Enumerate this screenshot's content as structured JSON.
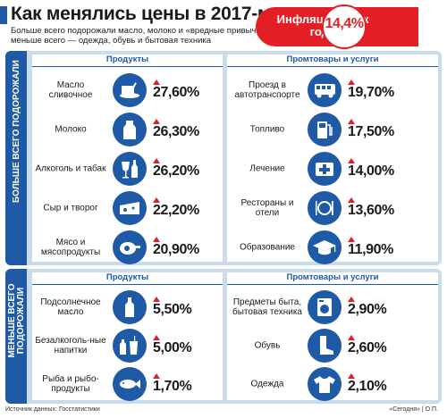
{
  "title": "Как менялись цены в 2017-м",
  "subtitle": "Больше всего подорожали масло, молоко и «вредные привычки», меньше всего — одежда, обувь и бытовая техника",
  "inflation": {
    "label": "Инфляция год к году",
    "value": "14,4%"
  },
  "more": {
    "side_label": "БОЛЬШЕ ВСЕГО ПОДОРОЖАЛИ",
    "left_head": "Продукты",
    "right_head": "Промтовары и услуги",
    "left": [
      {
        "label": "Масло сливочное",
        "value": "27,60%",
        "icon": "butter-icon"
      },
      {
        "label": "Молоко",
        "value": "26,30%",
        "icon": "milk-icon"
      },
      {
        "label": "Алкоголь и табак",
        "value": "26,20%",
        "icon": "alcohol-icon"
      },
      {
        "label": "Сыр и творог",
        "value": "22,20%",
        "icon": "cheese-icon"
      },
      {
        "label": "Мясо и мясопродукты",
        "value": "20,90%",
        "icon": "meat-icon"
      }
    ],
    "right": [
      {
        "label": "Проезд в автотранспорте",
        "value": "19,70%",
        "icon": "bus-icon"
      },
      {
        "label": "Топливо",
        "value": "17,50%",
        "icon": "fuel-icon"
      },
      {
        "label": "Лечение",
        "value": "14,00%",
        "icon": "medical-icon"
      },
      {
        "label": "Рестораны и отели",
        "value": "13,60%",
        "icon": "restaurant-icon"
      },
      {
        "label": "Образование",
        "value": "11,90%",
        "icon": "graduation-icon"
      }
    ]
  },
  "less": {
    "side_label": "МЕНЬШЕ ВСЕГО ПОДОРОЖАЛИ",
    "left_head": "Продукты",
    "right_head": "Промтовары и услуги",
    "left": [
      {
        "label": "Подсолнечное масло",
        "value": "5,50%",
        "icon": "oil-bottle-icon"
      },
      {
        "label": "Безалкоголь-ные напитки",
        "value": "5,00%",
        "icon": "soft-drink-icon"
      },
      {
        "label": "Рыба и рыбо-продукты",
        "value": "1,70%",
        "icon": "fish-icon"
      }
    ],
    "right": [
      {
        "label": "Предметы быта, бытовая техника",
        "value": "2,90%",
        "icon": "washing-machine-icon"
      },
      {
        "label": "Обувь",
        "value": "2,60%",
        "icon": "boot-icon"
      },
      {
        "label": "Одежда",
        "value": "2,10%",
        "icon": "tshirt-icon"
      }
    ]
  },
  "footer": {
    "source": "Источник данных: Госстатистики",
    "credit": "«Сегодня» | О.П."
  },
  "colors": {
    "accent_blue": "#1f5aa6",
    "accent_red": "#e31e24",
    "panel_bg": "#c9dcee"
  }
}
